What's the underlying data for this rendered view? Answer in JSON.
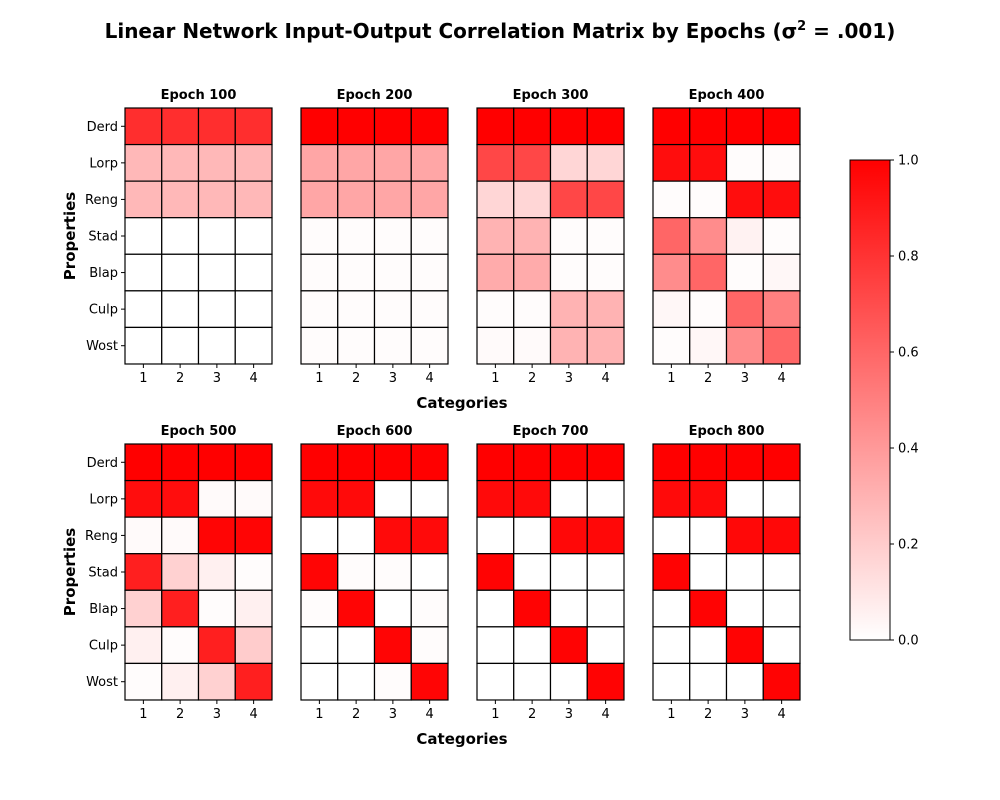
{
  "chart_data": {
    "type": "heatmap",
    "title_main": "Linear Network Input-Output Correlation Matrix by Epochs (σ",
    "title_sup": "2",
    "title_tail": " = .001)",
    "xlabel": "Categories",
    "ylabel": "Properties",
    "properties": [
      "Derd",
      "Lorp",
      "Reng",
      "Stad",
      "Blap",
      "Culp",
      "Wost"
    ],
    "categories": [
      "1",
      "2",
      "3",
      "4"
    ],
    "colorbar": {
      "min": 0.0,
      "max": 1.0,
      "ticks": [
        "0.0",
        "0.2",
        "0.4",
        "0.6",
        "0.8",
        "1.0"
      ],
      "low_color": "#ffffff",
      "high_color": "#ff0000"
    },
    "panels": [
      {
        "title": "Epoch 100",
        "values": [
          [
            0.82,
            0.82,
            0.82,
            0.82
          ],
          [
            0.28,
            0.28,
            0.28,
            0.28
          ],
          [
            0.28,
            0.28,
            0.28,
            0.28
          ],
          [
            0.0,
            0.0,
            0.0,
            0.0
          ],
          [
            0.0,
            0.0,
            0.0,
            0.0
          ],
          [
            0.0,
            0.0,
            0.0,
            0.0
          ],
          [
            0.0,
            0.0,
            0.0,
            0.0
          ]
        ]
      },
      {
        "title": "Epoch 200",
        "values": [
          [
            1.0,
            1.0,
            1.0,
            1.0
          ],
          [
            0.35,
            0.35,
            0.35,
            0.35
          ],
          [
            0.35,
            0.35,
            0.35,
            0.35
          ],
          [
            0.01,
            0.01,
            0.01,
            0.01
          ],
          [
            0.01,
            0.01,
            0.01,
            0.01
          ],
          [
            0.01,
            0.01,
            0.01,
            0.01
          ],
          [
            0.01,
            0.01,
            0.01,
            0.01
          ]
        ]
      },
      {
        "title": "Epoch 300",
        "values": [
          [
            1.0,
            1.0,
            1.0,
            1.0
          ],
          [
            0.72,
            0.72,
            0.16,
            0.16
          ],
          [
            0.16,
            0.16,
            0.72,
            0.72
          ],
          [
            0.3,
            0.3,
            0.01,
            0.01
          ],
          [
            0.33,
            0.33,
            0.01,
            0.01
          ],
          [
            0.01,
            0.01,
            0.3,
            0.3
          ],
          [
            0.02,
            0.02,
            0.3,
            0.3
          ]
        ]
      },
      {
        "title": "Epoch 400",
        "values": [
          [
            1.0,
            1.0,
            1.0,
            1.0
          ],
          [
            0.95,
            0.95,
            0.01,
            0.01
          ],
          [
            0.01,
            0.01,
            0.95,
            0.95
          ],
          [
            0.6,
            0.45,
            0.05,
            0.01
          ],
          [
            0.45,
            0.6,
            0.01,
            0.03
          ],
          [
            0.03,
            0.01,
            0.6,
            0.5
          ],
          [
            0.01,
            0.03,
            0.45,
            0.6
          ]
        ]
      },
      {
        "title": "Epoch 500",
        "values": [
          [
            1.0,
            1.0,
            1.0,
            1.0
          ],
          [
            0.95,
            0.95,
            0.02,
            0.02
          ],
          [
            0.02,
            0.02,
            0.98,
            0.98
          ],
          [
            0.88,
            0.18,
            0.06,
            0.01
          ],
          [
            0.18,
            0.88,
            0.01,
            0.06
          ],
          [
            0.06,
            0.01,
            0.88,
            0.2
          ],
          [
            0.01,
            0.06,
            0.18,
            0.88
          ]
        ]
      },
      {
        "title": "Epoch 600",
        "values": [
          [
            1.0,
            1.0,
            1.0,
            1.0
          ],
          [
            0.96,
            0.96,
            0.0,
            0.0
          ],
          [
            0.0,
            0.0,
            0.96,
            0.96
          ],
          [
            0.98,
            0.01,
            0.01,
            0.0
          ],
          [
            0.01,
            0.98,
            0.0,
            0.01
          ],
          [
            0.0,
            0.0,
            0.98,
            0.01
          ],
          [
            0.0,
            0.0,
            0.01,
            0.98
          ]
        ]
      },
      {
        "title": "Epoch 700",
        "values": [
          [
            1.0,
            1.0,
            1.0,
            1.0
          ],
          [
            0.96,
            0.96,
            0.0,
            0.0
          ],
          [
            0.0,
            0.0,
            0.97,
            0.97
          ],
          [
            0.99,
            0.0,
            0.0,
            0.0
          ],
          [
            0.0,
            0.99,
            0.0,
            0.0
          ],
          [
            0.0,
            0.0,
            0.99,
            0.0
          ],
          [
            0.0,
            0.0,
            0.0,
            0.99
          ]
        ]
      },
      {
        "title": "Epoch 800",
        "values": [
          [
            1.0,
            1.0,
            1.0,
            1.0
          ],
          [
            0.96,
            0.96,
            0.0,
            0.0
          ],
          [
            0.0,
            0.0,
            0.97,
            0.97
          ],
          [
            0.99,
            0.0,
            0.0,
            0.0
          ],
          [
            0.0,
            0.99,
            0.0,
            0.0
          ],
          [
            0.0,
            0.0,
            0.99,
            0.0
          ],
          [
            0.0,
            0.0,
            0.0,
            0.99
          ]
        ]
      }
    ]
  }
}
